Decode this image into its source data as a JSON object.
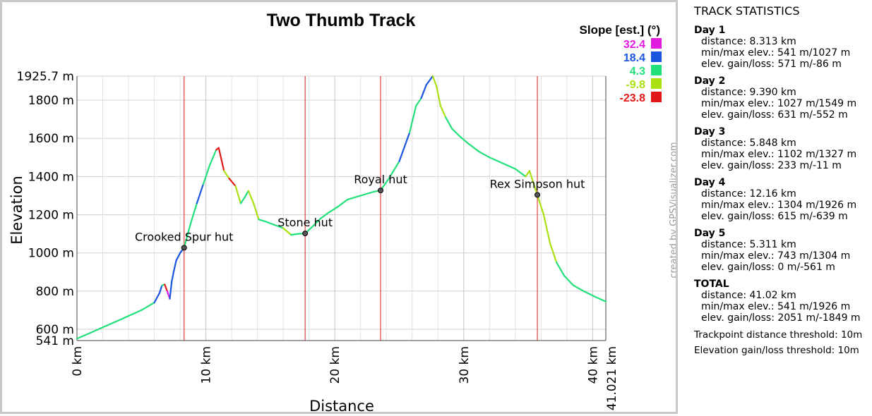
{
  "chart_data": {
    "type": "line",
    "title": "Two Thumb Track",
    "xlabel": "Distance",
    "ylabel": "Elevation",
    "xlim": [
      0,
      41.021
    ],
    "ylim": [
      541,
      1925.7
    ],
    "x_ticks": [
      {
        "value": 0,
        "label": "0 km"
      },
      {
        "value": 10,
        "label": "10 km"
      },
      {
        "value": 20,
        "label": "20 km"
      },
      {
        "value": 30,
        "label": "30 km"
      },
      {
        "value": 40,
        "label": "40 km"
      },
      {
        "value": 41.021,
        "label": "41.021 km"
      }
    ],
    "y_ticks": [
      {
        "value": 541,
        "label": "541 m"
      },
      {
        "value": 600,
        "label": "600 m"
      },
      {
        "value": 800,
        "label": "800 m"
      },
      {
        "value": 1000,
        "label": "1000 m"
      },
      {
        "value": 1200,
        "label": "1200 m"
      },
      {
        "value": 1400,
        "label": "1400 m"
      },
      {
        "value": 1600,
        "label": "1600 m"
      },
      {
        "value": 1800,
        "label": "1800 m"
      },
      {
        "value": 1925.7,
        "label": "1925.7 m"
      }
    ],
    "grid": true,
    "credit": "created by GPSVisualizer.com",
    "legend": {
      "title": "Slope [est.] (°)",
      "placement": "top-right",
      "entries": [
        {
          "label": "32.4",
          "color": "#e01be0"
        },
        {
          "label": "18.4",
          "color": "#1a55e0"
        },
        {
          "label": "4.3",
          "color": "#21e07a"
        },
        {
          "label": "-9.8",
          "color": "#a8e010"
        },
        {
          "label": "-23.8",
          "color": "#e01818"
        }
      ]
    },
    "waypoints": [
      {
        "name": "Crooked Spur hut",
        "x": 8.31,
        "y": 1027
      },
      {
        "name": "Stone hut",
        "x": 17.7,
        "y": 1102
      },
      {
        "name": "Royal hut",
        "x": 23.55,
        "y": 1327
      },
      {
        "name": "Rex Simpson hut",
        "x": 35.71,
        "y": 1304
      }
    ],
    "series": [
      {
        "x": [
          0,
          1,
          2,
          3,
          4,
          5,
          6,
          6.4,
          6.6,
          6.8,
          7.0,
          7.2,
          7.35,
          7.5,
          7.7,
          8.0,
          8.31,
          8.8,
          9.3,
          9.8,
          10.3,
          10.8,
          11.0,
          11.4,
          11.8,
          12.3,
          12.7,
          13.0,
          13.3,
          13.7,
          14.1,
          14.6,
          15.2,
          16.0,
          16.6,
          17.2,
          17.7,
          18.3,
          18.9,
          19.5,
          20.2,
          21.0,
          22.0,
          23.0,
          23.55,
          24.2,
          25.0,
          25.8,
          26.3,
          26.7,
          27.1,
          27.6,
          27.9,
          28.2,
          28.6,
          29.1,
          29.7,
          30.4,
          31.2,
          32.0,
          33.0,
          34.0,
          34.8,
          35.1,
          35.71,
          36.2,
          36.7,
          37.2,
          37.8,
          38.5,
          39.3,
          40.2,
          41.021
        ],
        "y": [
          551,
          580,
          610,
          640,
          670,
          700,
          740,
          790,
          830,
          835,
          800,
          760,
          850,
          900,
          960,
          1000,
          1027,
          1150,
          1260,
          1360,
          1460,
          1540,
          1550,
          1430,
          1390,
          1350,
          1260,
          1290,
          1325,
          1260,
          1175,
          1165,
          1150,
          1130,
          1095,
          1100,
          1102,
          1140,
          1180,
          1210,
          1240,
          1280,
          1300,
          1320,
          1327,
          1390,
          1480,
          1630,
          1770,
          1810,
          1880,
          1926,
          1870,
          1770,
          1710,
          1650,
          1610,
          1570,
          1530,
          1500,
          1470,
          1440,
          1400,
          1430,
          1304,
          1200,
          1050,
          950,
          880,
          830,
          800,
          770,
          745
        ],
        "colors": [
          "#21e07a",
          "#21e07a",
          "#21e07a",
          "#21e07a",
          "#21e07a",
          "#21e07a",
          "#1a55e0",
          "#1a55e0",
          "#21e07a",
          "#e01818",
          "#e01be0",
          "#1a55e0",
          "#1a55e0",
          "#1a55e0",
          "#1a55e0",
          "#1a55e0",
          "#21e07a",
          "#21e07a",
          "#1a55e0",
          "#21e07a",
          "#21e07a",
          "#e01818",
          "#e01818",
          "#a8e010",
          "#e01818",
          "#a8e010",
          "#21e07a",
          "#21e07a",
          "#a8e010",
          "#a8e010",
          "#21e07a",
          "#21e07a",
          "#21e07a",
          "#a8e010",
          "#21e07a",
          "#21e07a",
          "#21e07a",
          "#21e07a",
          "#21e07a",
          "#21e07a",
          "#21e07a",
          "#21e07a",
          "#21e07a",
          "#21e07a",
          "#21e07a",
          "#21e07a",
          "#1a55e0",
          "#21e07a",
          "#21e07a",
          "#1a55e0",
          "#1a55e0",
          "#a8e010",
          "#a8e010",
          "#a8e010",
          "#21e07a",
          "#21e07a",
          "#21e07a",
          "#21e07a",
          "#21e07a",
          "#21e07a",
          "#21e07a",
          "#21e07a",
          "#a8e010",
          "#a8e010",
          "#a8e010",
          "#a8e010",
          "#a8e010",
          "#21e07a",
          "#21e07a",
          "#21e07a",
          "#21e07a",
          "#21e07a"
        ]
      }
    ]
  },
  "stats": {
    "title": "TRACK STATISTICS",
    "days": [
      {
        "name": "Day 1",
        "lines": [
          "distance: 8.313 km",
          "min/max elev.: 541 m/1027 m",
          "elev. gain/loss: 571 m/-86 m"
        ]
      },
      {
        "name": "Day 2",
        "lines": [
          "distance: 9.390 km",
          "min/max elev.: 1027 m/1549 m",
          "elev. gain/loss: 631 m/-552 m"
        ]
      },
      {
        "name": "Day 3",
        "lines": [
          "distance: 5.848 km",
          "min/max elev.: 1102 m/1327 m",
          "elev. gain/loss: 233 m/-11 m"
        ]
      },
      {
        "name": "Day 4",
        "lines": [
          "distance: 12.16 km",
          "min/max elev.: 1304 m/1926 m",
          "elev. gain/loss: 615 m/-639 m"
        ]
      },
      {
        "name": "Day 5",
        "lines": [
          "distance: 5.311 km",
          "min/max elev.: 743 m/1304 m",
          "elev. gain/loss: 0 m/-561 m"
        ]
      },
      {
        "name": "TOTAL",
        "lines": [
          "distance: 41.02 km",
          "min/max elev.: 541 m/1926 m",
          "elev. gain/loss: 2051 m/-1849 m"
        ]
      }
    ],
    "thresholds": [
      "Trackpoint distance threshold: 10m",
      "Elevation gain/loss threshold: 10m"
    ]
  }
}
